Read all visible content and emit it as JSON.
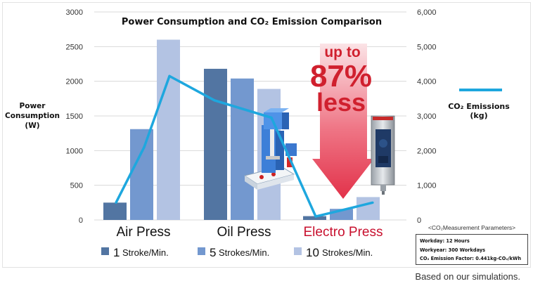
{
  "chart_data": {
    "type": "bar",
    "title": "Power Consumption and CO₂ Emission Comparison",
    "ylabel_left": [
      "Power",
      "Consumption",
      "(W)"
    ],
    "y_left_ticks": [
      "0",
      "500",
      "1000",
      "1500",
      "2000",
      "2500",
      "3000"
    ],
    "y_left_lim": [
      0,
      3000
    ],
    "y_right_ticks": [
      "0",
      "1,000",
      "2,000",
      "3,000",
      "4,000",
      "5,000",
      "6,000"
    ],
    "y_right_lim": [
      0,
      6000
    ],
    "categories": [
      "Air Press",
      "Oil Press",
      "Electro Press"
    ],
    "category_colors": [
      "#111111",
      "#111111",
      "#c8102e"
    ],
    "series": [
      {
        "name": "1",
        "suffix": "Stroke/Min.",
        "values": [
          250,
          2180,
          55
        ],
        "color": "#5275a2"
      },
      {
        "name": "5",
        "suffix": "Strokes/Min.",
        "values": [
          1310,
          2040,
          160
        ],
        "color": "#7398cf"
      },
      {
        "name": "10",
        "suffix": "Strokes/Min.",
        "values": [
          2600,
          1890,
          330
        ],
        "color": "#b3c3e3"
      }
    ],
    "line_series": {
      "name": [
        "CO₂ Emissions",
        "(kg)"
      ],
      "color": "#1ea7de",
      "values": [
        500,
        2100,
        4150,
        3450,
        2950,
        100,
        300,
        500
      ]
    },
    "callout": {
      "line1": "up to",
      "line2": "87%",
      "line3": "less",
      "color": "#d0202e"
    },
    "grid": true,
    "legend_position": "bottom"
  },
  "parameters": {
    "title": "<CO₂Measurement Parameters>",
    "lines": [
      "Workday: 12 Hours",
      "Workyear: 300 Workdays",
      "CO₂ Emission Factor: 0.441kg-CO₂/kWh"
    ]
  },
  "footnote": "Based on our simulations."
}
